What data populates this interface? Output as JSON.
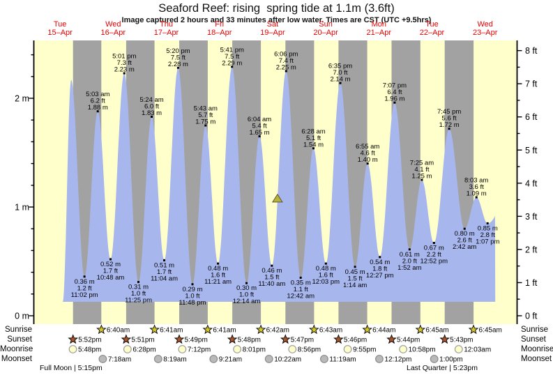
{
  "chart_data": {
    "type": "area",
    "title": "Seaford Reef: rising  spring tide at 1.1m (3.6ft)",
    "subtitle": "Image captured 2 hours and 33 minutes after low water. Times are CST (UTC +9.5hrs)",
    "days": [
      {
        "dow": "Tue",
        "date": "15–Apr"
      },
      {
        "dow": "Wed",
        "date": "16–Apr"
      },
      {
        "dow": "Thu",
        "date": "17–Apr"
      },
      {
        "dow": "Fri",
        "date": "18–Apr"
      },
      {
        "dow": "Sat",
        "date": "19–Apr"
      },
      {
        "dow": "Sun",
        "date": "20–Apr"
      },
      {
        "dow": "Mon",
        "date": "21–Apr"
      },
      {
        "dow": "Tue",
        "date": "22–Apr"
      },
      {
        "dow": "Wed",
        "date": "23–Apr"
      }
    ],
    "y_axis_left": {
      "unit": "m",
      "ticks": [
        "0 m",
        "1 m",
        "2 m"
      ],
      "range_m": [
        0,
        2.5
      ]
    },
    "y_axis_right": {
      "unit": "ft",
      "ticks": [
        "0 ft",
        "1 ft",
        "2 ft",
        "3 ft",
        "4 ft",
        "5 ft",
        "6 ft",
        "7 ft",
        "8 ft"
      ],
      "range_ft": [
        0,
        8
      ]
    },
    "high_tides": [
      {
        "labeled": false,
        "t": 0.709,
        "height_m": 2.17
      },
      {
        "day": 1,
        "time": "5:03 am",
        "ft": "6.2 ft",
        "m": "1.88 m"
      },
      {
        "day": 1,
        "time": "5:01 pm",
        "ft": "7.3 ft",
        "m": "2.23 m"
      },
      {
        "day": 2,
        "time": "5:24 am",
        "ft": "6.0 ft",
        "m": "1.83 m"
      },
      {
        "day": 2,
        "time": "5:20 pm",
        "ft": "7.5 ft",
        "m": "2.28 m"
      },
      {
        "day": 3,
        "time": "5:43 am",
        "ft": "5.7 ft",
        "m": "1.75 m"
      },
      {
        "day": 3,
        "time": "5:41 pm",
        "ft": "7.5 ft",
        "m": "2.29 m"
      },
      {
        "day": 4,
        "time": "6:04 am",
        "ft": "5.4 ft",
        "m": "1.65 m"
      },
      {
        "day": 4,
        "time": "6:06 pm",
        "ft": "7.4 ft",
        "m": "2.25 m"
      },
      {
        "day": 5,
        "time": "6:28 am",
        "ft": "5.1 ft",
        "m": "1.54 m"
      },
      {
        "day": 5,
        "time": "6:35 pm",
        "ft": "7.0 ft",
        "m": "2.14 m"
      },
      {
        "day": 6,
        "time": "6:55 am",
        "ft": "4.6 ft",
        "m": "1.40 m"
      },
      {
        "day": 6,
        "time": "7:07 pm",
        "ft": "6.4 ft",
        "m": "1.96 m"
      },
      {
        "day": 7,
        "time": "7:25 am",
        "ft": "4.1 ft",
        "m": "1.25 m"
      },
      {
        "day": 7,
        "time": "7:45 pm",
        "ft": "5.6 ft",
        "m": "1.72 m"
      },
      {
        "day": 8,
        "time": "8:03 am",
        "ft": "3.6 ft",
        "m": "1.09 m"
      }
    ],
    "low_tides": [
      {
        "day": 0,
        "time": "11:02 pm",
        "m": "0.36 m",
        "ft": "1.2 ft"
      },
      {
        "day": 1,
        "time": "10:48 am",
        "m": "0.52 m",
        "ft": "1.7 ft"
      },
      {
        "day": 1,
        "time": "11:25 pm",
        "m": "0.31 m",
        "ft": "1.0 ft"
      },
      {
        "day": 2,
        "time": "11:04 am",
        "m": "0.51 m",
        "ft": "1.7 ft"
      },
      {
        "day": 2,
        "time": "11:48 pm",
        "m": "0.29 m",
        "ft": "1.0 ft"
      },
      {
        "day": 3,
        "time": "11:21 am",
        "m": "0.48 m",
        "ft": "1.6 ft"
      },
      {
        "day": 4,
        "time": "12:14 am",
        "m": "0.30 m",
        "ft": "1.0 ft"
      },
      {
        "day": 4,
        "time": "11:40 am",
        "m": "0.46 m",
        "ft": "1.5 ft"
      },
      {
        "day": 5,
        "time": "12:42 am",
        "m": "0.35 m",
        "ft": "1.1 ft"
      },
      {
        "day": 5,
        "time": "12:03 pm",
        "m": "0.48 m",
        "ft": "1.6 ft"
      },
      {
        "day": 6,
        "time": "1:14 am",
        "m": "0.45 m",
        "ft": "1.5 ft"
      },
      {
        "day": 6,
        "time": "12:27 pm",
        "m": "0.54 m",
        "ft": "1.8 ft"
      },
      {
        "day": 7,
        "time": "1:52 am",
        "m": "0.61 m",
        "ft": "2.0 ft"
      },
      {
        "day": 7,
        "time": "12:52 pm",
        "m": "0.67 m",
        "ft": "2.2 ft"
      },
      {
        "day": 8,
        "time": "2:42 am",
        "m": "0.80 m",
        "ft": "2.6 ft"
      },
      {
        "day": 8,
        "time": "1:07 pm",
        "m": "0.85 m",
        "ft": "2.8 ft"
      }
    ],
    "current_marker": {
      "t": 4.592,
      "height_m": 1.1
    },
    "curve": {
      "start_t": 0.551,
      "end_t": 8.69,
      "pre_start": {
        "t": 0.551,
        "height_m": 0.13
      },
      "post_end": {
        "t": 9.4,
        "height_m": 1.9
      },
      "baseline_m": 0.13
    },
    "sun_moon_rows": [
      {
        "name": "Sunrise",
        "icon": "sunrise-star",
        "events": [
          {
            "day": 1,
            "time": "6:40am"
          },
          {
            "day": 2,
            "time": "6:41am"
          },
          {
            "day": 3,
            "time": "6:41am"
          },
          {
            "day": 4,
            "time": "6:42am"
          },
          {
            "day": 5,
            "time": "6:43am"
          },
          {
            "day": 6,
            "time": "6:44am"
          },
          {
            "day": 7,
            "time": "6:45am"
          },
          {
            "day": 8,
            "time": "6:45am"
          }
        ]
      },
      {
        "name": "Sunset",
        "icon": "sunset-star",
        "events": [
          {
            "day": 0,
            "time": "5:52pm"
          },
          {
            "day": 1,
            "time": "5:51pm"
          },
          {
            "day": 2,
            "time": "5:49pm"
          },
          {
            "day": 3,
            "time": "5:48pm"
          },
          {
            "day": 4,
            "time": "5:47pm"
          },
          {
            "day": 5,
            "time": "5:46pm"
          },
          {
            "day": 6,
            "time": "5:44pm"
          },
          {
            "day": 7,
            "time": "5:43pm"
          }
        ]
      },
      {
        "name": "Moonrise",
        "icon": "moonrise-circle",
        "events": [
          {
            "day": 0,
            "time": "5:48pm"
          },
          {
            "day": 1,
            "time": "6:28pm"
          },
          {
            "day": 2,
            "time": "7:12pm"
          },
          {
            "day": 3,
            "time": "8:01pm"
          },
          {
            "day": 4,
            "time": "8:56pm"
          },
          {
            "day": 5,
            "time": "9:55pm"
          },
          {
            "day": 6,
            "time": "10:58pm"
          },
          {
            "day": 8,
            "time": "12:03am"
          }
        ]
      },
      {
        "name": "Moonset",
        "icon": "moonset-circle",
        "events": [
          {
            "day": 1,
            "time": "7:18am"
          },
          {
            "day": 2,
            "time": "8:19am"
          },
          {
            "day": 3,
            "time": "9:21am"
          },
          {
            "day": 4,
            "time": "10:22am"
          },
          {
            "day": 5,
            "time": "11:19am"
          },
          {
            "day": 6,
            "time": "12:12pm"
          },
          {
            "day": 7,
            "time": "1:00pm"
          }
        ]
      }
    ],
    "moon_phase_notes": [
      {
        "text": "Full Moon | 5:15pm"
      },
      {
        "text": "Last Quarter | 5:23pm"
      }
    ],
    "colors": {
      "day_band": "#ffffcc",
      "night_band": "#a2a2a2",
      "tide_fill": "#a8b6ee",
      "date_red": "#e60000",
      "marker_fill": "#b8b13c",
      "marker_stroke": "#5a5730",
      "sunrise_star": "#d4c728",
      "sunset_star": "#a9542c",
      "moonrise_fill": "#ffffcc",
      "moonrise_stroke": "#9a9a9a",
      "moonset_fill": "#b9b9b9",
      "moonset_stroke": "#8a8a8a",
      "axis": "#000000"
    }
  }
}
